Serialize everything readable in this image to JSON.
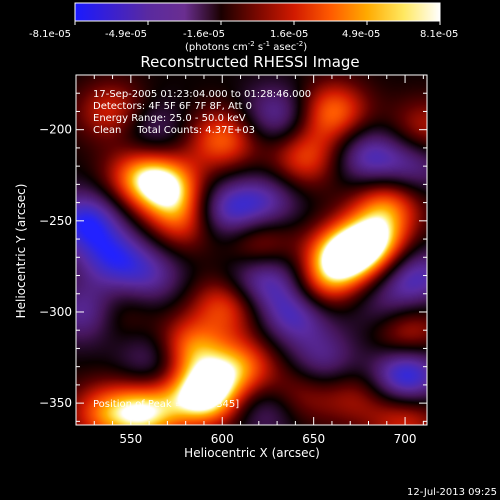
{
  "colorbar": {
    "ticks": [
      "-8.1e-05",
      "-4.9e-05",
      "-1.6e-05",
      "1.6e-05",
      "4.9e-05",
      "8.1e-05"
    ],
    "units_prefix": "(photons cm",
    "units_exp1": "-2",
    "units_mid": " s",
    "units_exp2": "-1",
    "units_mid2": " asec",
    "units_exp3": "-2",
    "units_suffix": ")",
    "gradient": [
      "#1a1aff",
      "#3a20d0",
      "#5a2aa0",
      "#6a2e90",
      "#1a0000",
      "#7a0800",
      "#d11a00",
      "#ff5a00",
      "#ffaa00",
      "#ffe860",
      "#ffffff"
    ]
  },
  "annotations": {
    "line1": "17-Sep-2005 01:23:04.000 to 01:28:46.000",
    "line2": "Detectors: 4F 5F 6F 7F 8F, Att 0",
    "line3": "Energy Range: 25.0 - 50.0 keV",
    "line4": "Clean     Total Counts: 4.37E+03",
    "peak": "Position of Peak = [590,-345]"
  },
  "footer": {
    "timestamp": "12-Jul-2013 09:25"
  },
  "chart_data": {
    "type": "heatmap",
    "title": "Reconstructed RHESSI Image",
    "xlabel": "Heliocentric X (arcsec)",
    "ylabel": "Heliocentric Y (arcsec)",
    "xlim": [
      520,
      712
    ],
    "ylim": [
      -362,
      -170
    ],
    "xticks": [
      550,
      600,
      650,
      700
    ],
    "yticks": [
      -200,
      -250,
      -300,
      -350
    ],
    "colorbar_range": [
      -8.1e-05,
      8.1e-05
    ],
    "peak_position": [
      590,
      -345
    ],
    "blobs": [
      {
        "x": 590,
        "y": -345,
        "v": 8.1
      },
      {
        "x": 558,
        "y": -355,
        "v": 6.0
      },
      {
        "x": 610,
        "y": -330,
        "v": 4.5
      },
      {
        "x": 580,
        "y": -320,
        "v": 5.5
      },
      {
        "x": 535,
        "y": -355,
        "v": 4.0
      },
      {
        "x": 665,
        "y": -270,
        "v": 7.0
      },
      {
        "x": 682,
        "y": -262,
        "v": 6.5
      },
      {
        "x": 650,
        "y": -285,
        "v": 5.0
      },
      {
        "x": 690,
        "y": -240,
        "v": 4.5
      },
      {
        "x": 570,
        "y": -232,
        "v": 5.5
      },
      {
        "x": 555,
        "y": -225,
        "v": 4.5
      },
      {
        "x": 600,
        "y": -205,
        "v": 4.5
      },
      {
        "x": 660,
        "y": -190,
        "v": 4.8
      },
      {
        "x": 645,
        "y": -215,
        "v": 4.0
      },
      {
        "x": 580,
        "y": -250,
        "v": 4.0
      },
      {
        "x": 603,
        "y": -295,
        "v": 4.5
      },
      {
        "x": 620,
        "y": -262,
        "v": 3.5
      },
      {
        "x": 700,
        "y": -310,
        "v": 4.0
      },
      {
        "x": 700,
        "y": -358,
        "v": 3.5
      },
      {
        "x": 540,
        "y": -300,
        "v": 3.0
      },
      {
        "x": 640,
        "y": -345,
        "v": 3.0
      },
      {
        "x": 672,
        "y": -345,
        "v": 2.5
      },
      {
        "x": 540,
        "y": -190,
        "v": 3.5
      },
      {
        "x": 710,
        "y": -200,
        "v": 3.0
      },
      {
        "x": 525,
        "y": -250,
        "v": -5.0
      },
      {
        "x": 540,
        "y": -270,
        "v": -4.0
      },
      {
        "x": 528,
        "y": -300,
        "v": -4.5
      },
      {
        "x": 600,
        "y": -245,
        "v": -4.5
      },
      {
        "x": 623,
        "y": -240,
        "v": -3.5
      },
      {
        "x": 617,
        "y": -283,
        "v": -4.0
      },
      {
        "x": 640,
        "y": -300,
        "v": -4.5
      },
      {
        "x": 640,
        "y": -280,
        "v": -3.0
      },
      {
        "x": 700,
        "y": -335,
        "v": -6.0
      },
      {
        "x": 705,
        "y": -280,
        "v": -4.0
      },
      {
        "x": 680,
        "y": -215,
        "v": -4.0
      },
      {
        "x": 705,
        "y": -220,
        "v": -3.0
      },
      {
        "x": 630,
        "y": -192,
        "v": -3.5
      },
      {
        "x": 560,
        "y": -200,
        "v": -2.5
      },
      {
        "x": 655,
        "y": -327,
        "v": -3.0
      },
      {
        "x": 625,
        "y": -352,
        "v": -3.0
      },
      {
        "x": 560,
        "y": -280,
        "v": -3.0
      },
      {
        "x": 690,
        "y": -298,
        "v": -2.5
      },
      {
        "x": 565,
        "y": -325,
        "v": -3.5
      }
    ]
  }
}
